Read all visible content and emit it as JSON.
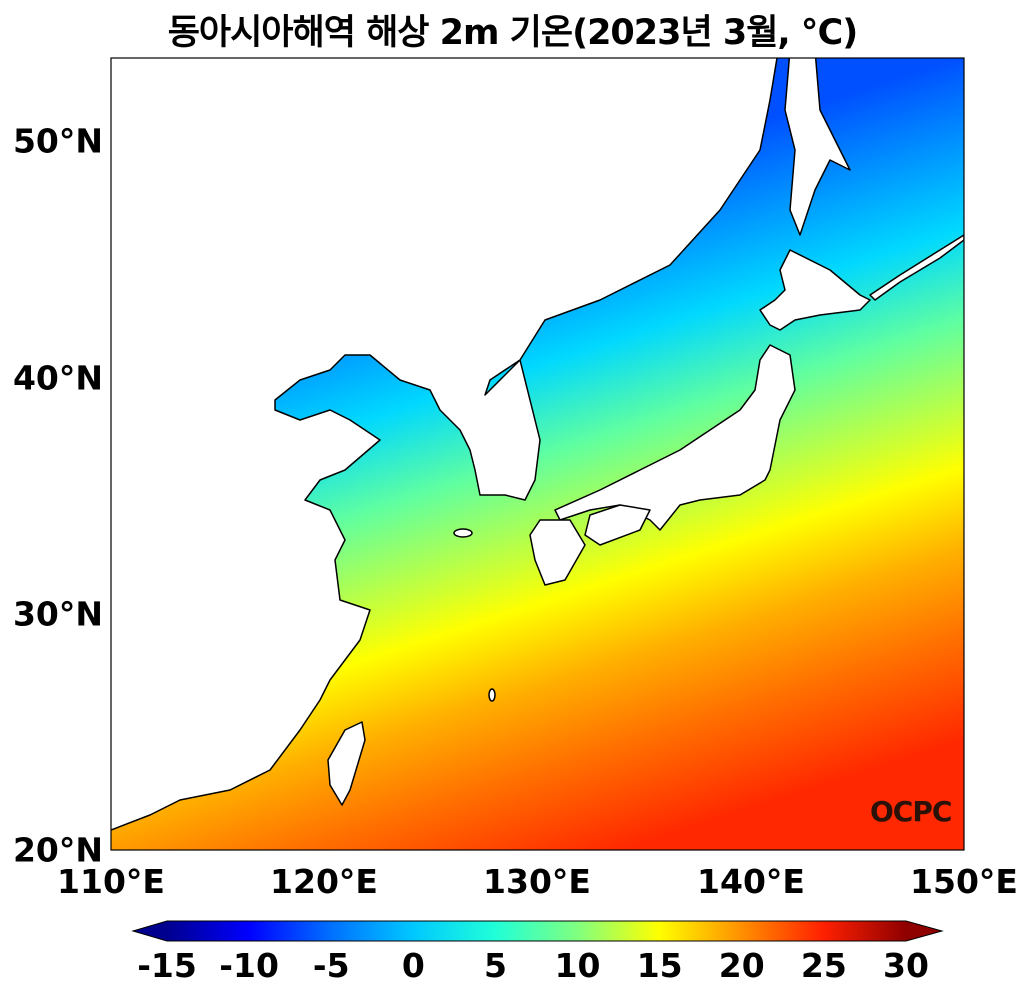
{
  "title": "동아시아해역 해상 2m 기온(2023년 3월, ℃)",
  "map": {
    "variable": "해상 2m 기온",
    "units": "℃",
    "lon_range": [
      110,
      150
    ],
    "lat_range": [
      20,
      53.5
    ],
    "lat_labels": [
      "50°N",
      "40°N",
      "30°N",
      "20°N"
    ],
    "lon_labels": [
      "110°E",
      "120°E",
      "130°E",
      "140°E",
      "150°E"
    ],
    "land_color": "#ffffff",
    "coastline_color": "#000000"
  },
  "colorbar": {
    "colormap": "jet",
    "range": [
      -15,
      30
    ],
    "extend": "both",
    "ticks": [
      "-15",
      "-10",
      "-5",
      "0",
      "5",
      "10",
      "15",
      "20",
      "25",
      "30"
    ]
  },
  "logo": "OCPC"
}
